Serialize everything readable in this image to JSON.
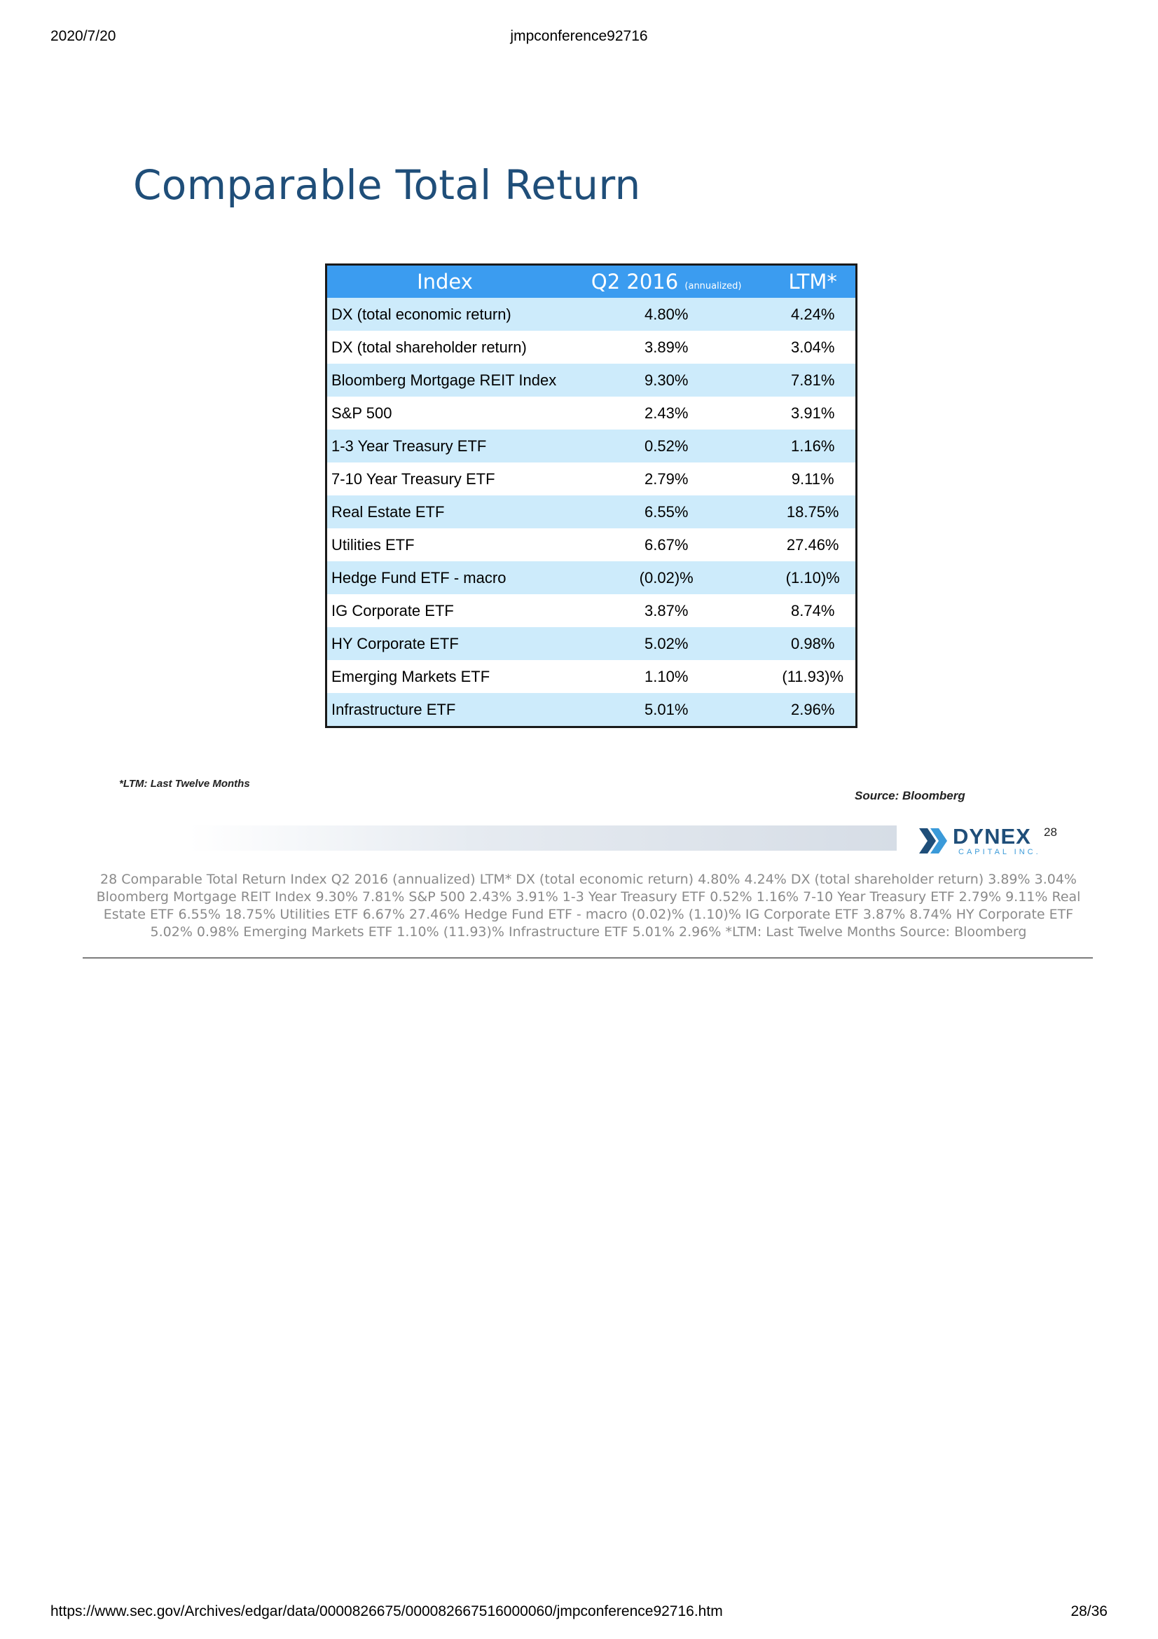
{
  "print_header": {
    "date": "2020/7/20",
    "doc_title": "jmpconference92716"
  },
  "slide": {
    "title": "Comparable Total Return",
    "table": {
      "headers": {
        "index": "Index",
        "q2_main": "Q2 2016",
        "q2_sub": "(annualized)",
        "ltm": "LTM*"
      },
      "rows": [
        {
          "name": "DX (total economic return)",
          "q2": "4.80%",
          "ltm": "4.24%"
        },
        {
          "name": "DX (total shareholder return)",
          "q2": "3.89%",
          "ltm": "3.04%"
        },
        {
          "name": "Bloomberg Mortgage REIT Index",
          "q2": "9.30%",
          "ltm": "7.81%"
        },
        {
          "name": "S&P 500",
          "q2": "2.43%",
          "ltm": "3.91%"
        },
        {
          "name": "1-3 Year Treasury ETF",
          "q2": "0.52%",
          "ltm": "1.16%"
        },
        {
          "name": "7-10 Year Treasury ETF",
          "q2": "2.79%",
          "ltm": "9.11%"
        },
        {
          "name": "Real Estate ETF",
          "q2": "6.55%",
          "ltm": "18.75%"
        },
        {
          "name": "Utilities ETF",
          "q2": "6.67%",
          "ltm": "27.46%"
        },
        {
          "name": "Hedge Fund ETF - macro",
          "q2": "(0.02)%",
          "ltm": "(1.10)%"
        },
        {
          "name": "IG Corporate ETF",
          "q2": "3.87%",
          "ltm": "8.74%"
        },
        {
          "name": "HY Corporate ETF",
          "q2": "5.02%",
          "ltm": "0.98%"
        },
        {
          "name": "Emerging Markets ETF",
          "q2": "1.10%",
          "ltm": "(11.93)%"
        },
        {
          "name": "Infrastructure ETF",
          "q2": "5.01%",
          "ltm": "2.96%"
        }
      ]
    },
    "footnote": "*LTM: Last Twelve Months",
    "source": "Source: Bloomberg",
    "logo": {
      "word": "DYNEX",
      "sub": "CAPITAL INC."
    },
    "page_number": "28",
    "colors": {
      "title": "#1f4e79",
      "header_bg": "#3b9cf0",
      "row_alt_bg": "#cdebfb"
    }
  },
  "alt_text": "28  Comparable Total Return    Index Q2 2016 (annualized) LTM*  DX (total economic return) 4.80% 4.24%  DX (total shareholder return) 3.89% 3.04%  Bloomberg Mortgage REIT Index 9.30% 7.81%  S&P 500 2.43% 3.91%  1-3 Year Treasury ETF 0.52% 1.16%  7-10 Year Treasury ETF 2.79% 9.11%  Real Estate ETF 6.55% 18.75%  Utilities ETF 6.67% 27.46%  Hedge Fund ETF - macro (0.02)% (1.10)%  IG Corporate ETF 3.87% 8.74%  HY Corporate ETF 5.02% 0.98%  Emerging Markets ETF 1.10% (11.93)%  Infrastructure ETF 5.01% 2.96%  *LTM: Last Twelve Months  Source: Bloomberg",
  "print_footer": {
    "url": "https://www.sec.gov/Archives/edgar/data/0000826675/000082667516000060/jmpconference92716.htm",
    "page": "28/36"
  }
}
